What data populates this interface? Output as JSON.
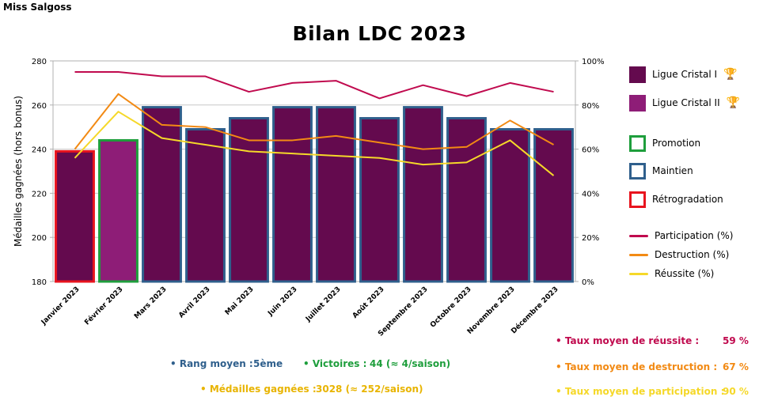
{
  "header": {
    "author": "Miss Salgoss",
    "title": "Bilan LDC 2023"
  },
  "colors": {
    "cristal1": "#640A4E",
    "cristal2": "#8E1D77",
    "promotion": "#1E9E3C",
    "maintien": "#2F5F8C",
    "retrogradation": "#E8141E",
    "participation": "#C00A4E",
    "destruction": "#F28A14",
    "reussite": "#F5D829"
  },
  "chart_data": {
    "type": "bar",
    "categories": [
      "Janvier 2023",
      "Février 2023",
      "Mars 2023",
      "Avril 2023",
      "Mai 2023",
      "Juin 2023",
      "Juillet 2023",
      "Août 2023",
      "Septembre 2023",
      "Octobre 2023",
      "Novembre 2023",
      "Décembre 2023"
    ],
    "ylabel": "Médailles gagnées (hors bonus)",
    "ylim": [
      180,
      280
    ],
    "yticks": [
      "180",
      "200",
      "220",
      "240",
      "260",
      "280"
    ],
    "y2lim": [
      0,
      100
    ],
    "y2ticks": [
      "0%",
      "20%",
      "40%",
      "60%",
      "80%",
      "100%"
    ],
    "grid": true,
    "legend_position": "right",
    "bars": {
      "values": [
        239,
        244,
        259,
        249,
        254,
        259,
        259,
        254,
        259,
        254,
        249,
        249
      ],
      "league": [
        "Ligue Cristal I",
        "Ligue Cristal II",
        "Ligue Cristal I",
        "Ligue Cristal I",
        "Ligue Cristal I",
        "Ligue Cristal I",
        "Ligue Cristal I",
        "Ligue Cristal I",
        "Ligue Cristal I",
        "Ligue Cristal I",
        "Ligue Cristal I",
        "Ligue Cristal I"
      ],
      "outcome": [
        "Rétrogradation",
        "Promotion",
        "Maintien",
        "Maintien",
        "Maintien",
        "Maintien",
        "Maintien",
        "Maintien",
        "Maintien",
        "Maintien",
        "Maintien",
        "Maintien"
      ]
    },
    "series": [
      {
        "name": "Participation (%)",
        "values": [
          95,
          95,
          93,
          93,
          86,
          90,
          91,
          83,
          89,
          84,
          90,
          86
        ]
      },
      {
        "name": "Destruction (%)",
        "values": [
          60,
          85,
          71,
          70,
          64,
          64,
          66,
          63,
          60,
          61,
          73,
          62
        ]
      },
      {
        "name": "Réussite (%)",
        "values": [
          56,
          77,
          65,
          62,
          59,
          58,
          57,
          56,
          53,
          54,
          64,
          48
        ]
      }
    ]
  },
  "legend": {
    "leagues": [
      "Ligue Cristal I",
      "Ligue Cristal II"
    ],
    "outcomes": [
      "Promotion",
      "Maintien",
      "Rétrogradation"
    ],
    "lines": [
      "Participation (%)",
      "Destruction (%)",
      "Réussite (%)"
    ]
  },
  "summary": {
    "rang_label": "• Rang moyen :",
    "rang_value": "5ème",
    "victoires_label": "• Victoires :",
    "victoires_value": "44 (≈ 4/saison)",
    "medailles_label": "• Médailles gagnées :",
    "medailles_value": "3028 (≈ 252/saison)",
    "reussite_label": "• Taux moyen de réussite :",
    "reussite_value": "59 %",
    "destruction_label": "• Taux moyen de destruction :",
    "destruction_value": "67 %",
    "participation_label": "• Taux moyen de participation :",
    "participation_value": "90 %"
  }
}
